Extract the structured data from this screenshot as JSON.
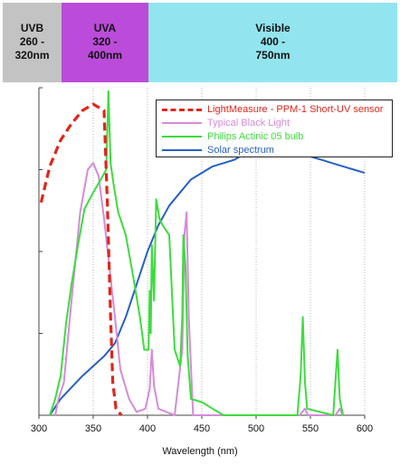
{
  "bands": [
    {
      "label_line1": "UVB",
      "label_line2": "260 -",
      "label_line3": "320nm",
      "color": "#c3c3c3"
    },
    {
      "label_line1": "UVA",
      "label_line2": "320 -",
      "label_line3": "400nm",
      "color": "#bb4cd9"
    },
    {
      "label_line1": "Visible",
      "label_line2": "400 -",
      "label_line3": "750nm",
      "color": "#92e5ef"
    }
  ],
  "chart_data": {
    "type": "line",
    "title": "",
    "xlabel": "Wavelength (nm)",
    "ylabel": "",
    "xlim": [
      300,
      600
    ],
    "ylim": [
      0,
      1.0
    ],
    "x_ticks": [
      "300",
      "350",
      "400",
      "450",
      "500",
      "550",
      "600"
    ],
    "grid": "vertical dotted",
    "legend_position": "top-right",
    "series": [
      {
        "name": "LightMeasure - PPM-1 Short-UV sensor",
        "color": "#e0261c",
        "style": "dashed",
        "points": [
          [
            302,
            0.65
          ],
          [
            310,
            0.76
          ],
          [
            320,
            0.84
          ],
          [
            330,
            0.89
          ],
          [
            340,
            0.93
          ],
          [
            350,
            0.95
          ],
          [
            360,
            0.93
          ],
          [
            363,
            0.65
          ],
          [
            366,
            0.3
          ],
          [
            368,
            0.1
          ],
          [
            371,
            0.02
          ],
          [
            376,
            0.0
          ]
        ]
      },
      {
        "name": "Typical Black Light",
        "color": "#d58bd8",
        "style": "solid",
        "points": [
          [
            315,
            0.0
          ],
          [
            318,
            0.05
          ],
          [
            323,
            0.1
          ],
          [
            330,
            0.35
          ],
          [
            338,
            0.62
          ],
          [
            345,
            0.75
          ],
          [
            350,
            0.77
          ],
          [
            355,
            0.73
          ],
          [
            360,
            0.6
          ],
          [
            365,
            0.45
          ],
          [
            370,
            0.3
          ],
          [
            375,
            0.14
          ],
          [
            383,
            0.05
          ],
          [
            390,
            0.01
          ],
          [
            398,
            0.02
          ],
          [
            402,
            0.08
          ],
          [
            404,
            0.2
          ],
          [
            406,
            0.09
          ],
          [
            410,
            0.02
          ],
          [
            425,
            0.0
          ],
          [
            432,
            0.2
          ],
          [
            434,
            0.55
          ],
          [
            436,
            0.62
          ],
          [
            438,
            0.3
          ],
          [
            442,
            0.0
          ],
          [
            540,
            0.0
          ],
          [
            545,
            0.02
          ],
          [
            548,
            0.0
          ],
          [
            573,
            0.0
          ],
          [
            577,
            0.02
          ],
          [
            580,
            0.0
          ]
        ]
      },
      {
        "name": "Philips Actinic 05 bulb",
        "color": "#3ddc3d",
        "style": "solid",
        "points": [
          [
            310,
            0.0
          ],
          [
            315,
            0.05
          ],
          [
            320,
            0.12
          ],
          [
            325,
            0.28
          ],
          [
            330,
            0.4
          ],
          [
            336,
            0.52
          ],
          [
            342,
            0.63
          ],
          [
            350,
            0.68
          ],
          [
            357,
            0.72
          ],
          [
            362,
            0.75
          ],
          [
            364,
            0.99
          ],
          [
            366,
            0.77
          ],
          [
            369,
            0.7
          ],
          [
            373,
            0.62
          ],
          [
            380,
            0.55
          ],
          [
            387,
            0.42
          ],
          [
            393,
            0.3
          ],
          [
            397,
            0.2
          ],
          [
            401,
            0.2
          ],
          [
            402,
            0.38
          ],
          [
            403,
            0.25
          ],
          [
            404,
            0.52
          ],
          [
            406,
            0.35
          ],
          [
            408,
            0.66
          ],
          [
            411,
            0.6
          ],
          [
            414,
            0.58
          ],
          [
            420,
            0.55
          ],
          [
            425,
            0.2
          ],
          [
            430,
            0.15
          ],
          [
            432,
            0.3
          ],
          [
            433,
            0.55
          ],
          [
            435,
            0.45
          ],
          [
            437,
            0.18
          ],
          [
            440,
            0.05
          ],
          [
            450,
            0.04
          ],
          [
            460,
            0.02
          ],
          [
            470,
            0.0
          ],
          [
            538,
            0.0
          ],
          [
            541,
            0.12
          ],
          [
            543,
            0.3
          ],
          [
            545,
            0.1
          ],
          [
            547,
            0.02
          ],
          [
            571,
            0.0
          ],
          [
            575,
            0.2
          ],
          [
            577,
            0.05
          ],
          [
            580,
            0.0
          ]
        ]
      },
      {
        "name": "Solar spectrum",
        "color": "#2760c6",
        "style": "solid",
        "points": [
          [
            310,
            0.0
          ],
          [
            320,
            0.05
          ],
          [
            340,
            0.12
          ],
          [
            360,
            0.18
          ],
          [
            370,
            0.22
          ],
          [
            380,
            0.3
          ],
          [
            390,
            0.4
          ],
          [
            400,
            0.5
          ],
          [
            410,
            0.58
          ],
          [
            420,
            0.64
          ],
          [
            430,
            0.68
          ],
          [
            440,
            0.72
          ],
          [
            450,
            0.74
          ],
          [
            460,
            0.76
          ],
          [
            470,
            0.77
          ],
          [
            480,
            0.78
          ],
          [
            490,
            0.8
          ],
          [
            500,
            0.81
          ],
          [
            510,
            0.82
          ],
          [
            520,
            0.82
          ],
          [
            530,
            0.81
          ],
          [
            540,
            0.8
          ],
          [
            550,
            0.79
          ],
          [
            560,
            0.78
          ],
          [
            570,
            0.77
          ],
          [
            580,
            0.76
          ],
          [
            590,
            0.75
          ],
          [
            600,
            0.74
          ]
        ]
      }
    ]
  }
}
